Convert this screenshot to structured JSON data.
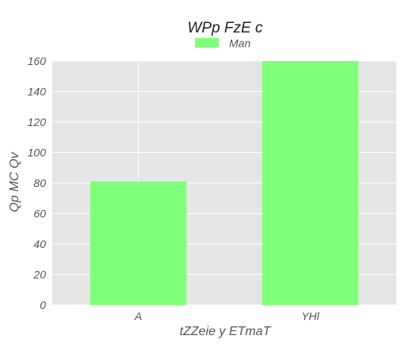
{
  "chart_data": {
    "type": "bar",
    "title": "WPp FzE c",
    "xlabel": "tZZeie y ETmaT",
    "ylabel": "Qp MC Qv",
    "categories": [
      "A",
      "YHl"
    ],
    "series": [
      {
        "name": "Man",
        "values": [
          81,
          160
        ],
        "color": "#80ff7a"
      }
    ],
    "ylim": [
      0,
      160
    ],
    "yticks": [
      0,
      20,
      40,
      60,
      80,
      100,
      120,
      140,
      160
    ],
    "grid": true,
    "legend": "top-center",
    "background": "#e5e5e5",
    "grid_color": "#ffffff"
  }
}
